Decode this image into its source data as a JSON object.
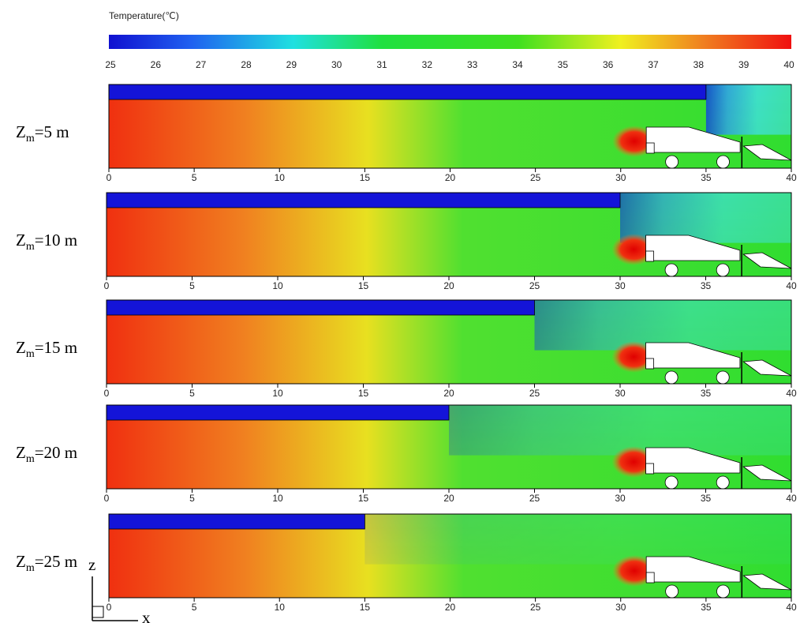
{
  "colorbar": {
    "title": "Temperature(℃)",
    "lim": [
      25,
      40
    ],
    "ticks": [
      25,
      26,
      27,
      28,
      29,
      30,
      31,
      32,
      33,
      34,
      35,
      36,
      37,
      38,
      39,
      40
    ]
  },
  "panels": [
    {
      "label": "Z",
      "label_sub": "m",
      "label_rest": "=5 m",
      "xlim": [
        0,
        40
      ],
      "xticks": [
        0,
        5,
        10,
        15,
        20,
        25,
        30,
        35,
        40
      ],
      "duct_end": 35
    },
    {
      "label": "Z",
      "label_sub": "m",
      "label_rest": "=10 m",
      "xlim": [
        0,
        40
      ],
      "xticks": [
        0,
        5,
        10,
        15,
        20,
        25,
        30,
        35,
        40
      ],
      "duct_end": 30
    },
    {
      "label": "Z",
      "label_sub": "m",
      "label_rest": "=15 m",
      "xlim": [
        0,
        40
      ],
      "xticks": [
        0,
        5,
        10,
        15,
        20,
        25,
        30,
        35,
        40
      ],
      "duct_end": 25
    },
    {
      "label": "Z",
      "label_sub": "m",
      "label_rest": "=20 m",
      "xlim": [
        0,
        40
      ],
      "xticks": [
        0,
        5,
        10,
        15,
        20,
        25,
        30,
        35,
        40
      ],
      "duct_end": 20
    },
    {
      "label": "Z",
      "label_sub": "m",
      "label_rest": "=25 m",
      "xlim": [
        0,
        40
      ],
      "xticks": [
        0,
        5,
        10,
        15,
        20,
        25,
        30,
        35,
        40
      ],
      "duct_end": 15
    }
  ],
  "axes": {
    "z": "z",
    "x": "x"
  }
}
